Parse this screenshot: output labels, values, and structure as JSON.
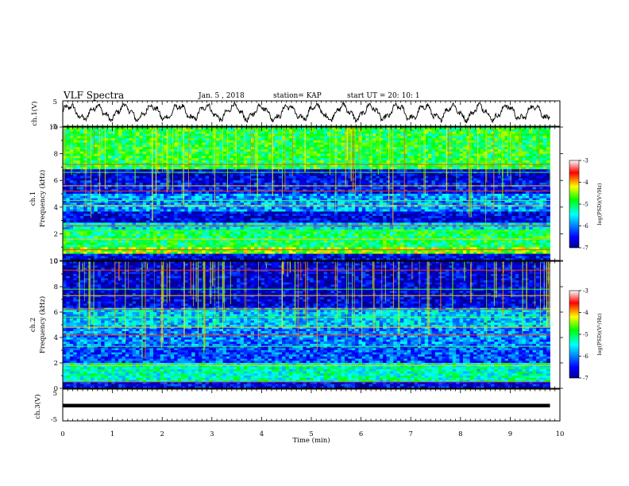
{
  "header": {
    "title": "VLF Spectra",
    "date": "Jan. 5 , 2018",
    "station": "station= KAP",
    "start_ut": "start UT =  20: 10: 1"
  },
  "x_axis": {
    "label": "Time (min)",
    "range": [
      0,
      10
    ],
    "ticks": [
      "0",
      "1",
      "2",
      "3",
      "4",
      "5",
      "6",
      "7",
      "8",
      "9",
      "10"
    ]
  },
  "panels": {
    "ch1_wave": {
      "ylabel": "ch.1(V)",
      "ticks": [
        "5",
        "-5"
      ]
    },
    "ch1_spec": {
      "ylabel": [
        "ch.1",
        "Frequency (kHz)"
      ],
      "ticks": [
        "10",
        "8",
        "6",
        "4",
        "2",
        "0"
      ]
    },
    "ch2_spec": {
      "ylabel": [
        "ch.2",
        "Frequency (kHz)"
      ],
      "ticks": [
        "10",
        "8",
        "6",
        "4",
        "2",
        "0"
      ]
    },
    "ch3_wave": {
      "ylabel": "ch.3(V)",
      "ticks": [
        "5",
        "-5"
      ]
    }
  },
  "colorbar": {
    "label": "log(PSD)(V²/Hz)",
    "ticks": [
      "-3",
      "-4",
      "-5",
      "-6",
      "-7"
    ],
    "range": [
      -7,
      -3
    ],
    "colors": [
      "#00008f",
      "#0000ff",
      "#00ffff",
      "#00ff00",
      "#ffff00",
      "#ff0000",
      "#ffffff"
    ]
  },
  "chart_data": [
    {
      "type": "line",
      "channel": "ch.1",
      "xlabel": "Time (min)",
      "ylabel": "ch.1(V)",
      "xlim": [
        0,
        9.8
      ],
      "ylim": [
        -5,
        5
      ],
      "approx_oscillation_period_min": 0.55,
      "approx_amplitude_v": 2.5
    },
    {
      "type": "heatmap",
      "channel": "ch.1",
      "xlabel": "Time (min)",
      "ylabel": "Frequency (kHz)",
      "xlim": [
        0,
        9.8
      ],
      "ylim": [
        0,
        10
      ],
      "colorbar_range": [
        -7,
        -3
      ],
      "bands_khz": [
        {
          "from": 0,
          "to": 0.5,
          "level": -6.6
        },
        {
          "from": 0.5,
          "to": 1.0,
          "level": -4.5
        },
        {
          "from": 1.0,
          "to": 2.4,
          "level": -5.0
        },
        {
          "from": 2.4,
          "to": 2.9,
          "level": -5.6
        },
        {
          "from": 2.9,
          "to": 3.6,
          "level": -6.6
        },
        {
          "from": 3.6,
          "to": 5.0,
          "level": -5.9
        },
        {
          "from": 5.0,
          "to": 6.0,
          "level": -6.5
        },
        {
          "from": 6.0,
          "to": 6.8,
          "level": -6.7
        },
        {
          "from": 6.8,
          "to": 10.0,
          "level": -4.9
        }
      ],
      "lines_khz": [
        0.8,
        1.6,
        2.2,
        2.6,
        4.1,
        4.5,
        5.2,
        5.6,
        6.6,
        7.2
      ]
    },
    {
      "type": "heatmap",
      "channel": "ch.2",
      "xlabel": "Time (min)",
      "ylabel": "Frequency (kHz)",
      "xlim": [
        0,
        9.8
      ],
      "ylim": [
        0,
        10
      ],
      "colorbar_range": [
        -7,
        -3
      ],
      "bands_khz": [
        {
          "from": 0,
          "to": 0.5,
          "level": -6.6
        },
        {
          "from": 0.5,
          "to": 2.0,
          "level": -5.3
        },
        {
          "from": 2.0,
          "to": 3.3,
          "level": -6.2
        },
        {
          "from": 3.3,
          "to": 4.8,
          "level": -6.0
        },
        {
          "from": 4.8,
          "to": 6.3,
          "level": -5.7
        },
        {
          "from": 6.3,
          "to": 10.0,
          "level": -6.7
        }
      ],
      "lines_khz": [
        0.5,
        1.8,
        3.3,
        4.2,
        4.8,
        5.6,
        6.2,
        7.3,
        7.8,
        9.3
      ]
    },
    {
      "type": "line",
      "channel": "ch.3",
      "xlabel": "Time (min)",
      "ylabel": "ch.3(V)",
      "xlim": [
        0,
        9.8
      ],
      "ylim": [
        -5,
        5
      ],
      "x": [
        0,
        9.8
      ],
      "y": [
        -0.2,
        -0.2
      ]
    }
  ]
}
